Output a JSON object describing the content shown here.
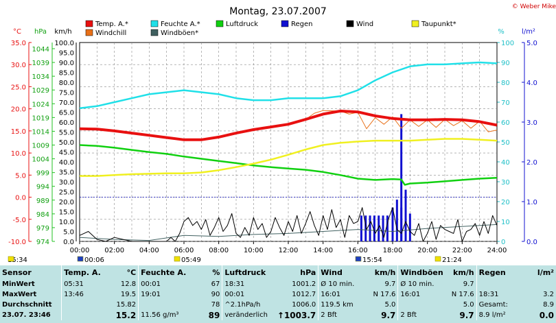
{
  "chart_data": {
    "type": "line",
    "title": "Montag, 23.07.2007",
    "copyright": "© Weber Mike",
    "legend": [
      {
        "label": "Temp. A.*",
        "color": "#e81010"
      },
      {
        "label": "Feuchte A.*",
        "color": "#20e0e8"
      },
      {
        "label": "Luftdruck",
        "color": "#10d010"
      },
      {
        "label": "Regen",
        "color": "#1010d0"
      },
      {
        "label": "Wind",
        "color": "#000000"
      },
      {
        "label": "Taupunkt*",
        "color": "#f0f020"
      },
      {
        "label": "Windchill",
        "color": "#e87018"
      },
      {
        "label": "Windböen*",
        "color": "#406060"
      }
    ],
    "axes": {
      "temp": {
        "unit": "°C",
        "ticks": [
          "35.0",
          "30.0",
          "25.0",
          "20.0",
          "15.0",
          "10.0",
          "5.0",
          "0.0",
          "-5.0",
          "-10.0"
        ],
        "color": "#e81010",
        "range": [
          -10,
          35
        ]
      },
      "pressure": {
        "unit": "hPa",
        "ticks": [
          "1044",
          "1039",
          "1034",
          "1029",
          "1024",
          "1019",
          "1014",
          "1009",
          "1004",
          "999",
          "994",
          "989",
          "984",
          "979",
          "974"
        ],
        "color": "#10a010"
      },
      "wind": {
        "unit": "km/h",
        "ticks": [
          "100.0",
          "95.0",
          "90.0",
          "85.0",
          "80.0",
          "75.0",
          "70.0",
          "65.0",
          "60.0",
          "55.0",
          "50.0",
          "45.0",
          "40.0",
          "35.0",
          "30.0",
          "25.0",
          "20.0",
          "15.0",
          "10.0",
          "5.0",
          "0.0"
        ],
        "color": "#000000",
        "range": [
          0,
          100
        ]
      },
      "humidity": {
        "unit": "%",
        "ticks": [
          "100",
          "90",
          "80",
          "70",
          "60",
          "50",
          "40",
          "30",
          "20",
          "10",
          "0"
        ],
        "color": "#20c0c8",
        "range": [
          0,
          100
        ]
      },
      "rain": {
        "unit": "l/m²",
        "ticks": [
          "5.0",
          "4.0",
          "3.0",
          "2.0",
          "1.0",
          "0.0"
        ],
        "color": "#1010d0",
        "range": [
          0,
          5
        ]
      }
    },
    "x_ticks": [
      "00:00",
      "02:00",
      "04:00",
      "06:00",
      "08:00",
      "10:00",
      "12:00",
      "14:00",
      "16:00",
      "18:00",
      "20:00",
      "22:00",
      "24:00"
    ],
    "x_range": [
      0,
      24
    ],
    "sun_markers": [
      {
        "label": "15:34"
      },
      {
        "label": "00:06"
      },
      {
        "label": "05:49"
      },
      {
        "label": "15:54"
      },
      {
        "label": "21:24"
      }
    ],
    "series": [
      {
        "name": "Temp. A.*",
        "axis": "temp",
        "x": [
          0,
          1,
          2,
          3,
          4,
          5,
          6,
          7,
          8,
          9,
          10,
          11,
          12,
          13,
          14,
          15,
          16,
          17,
          18,
          19,
          20,
          21,
          22,
          23,
          24
        ],
        "y": [
          15.5,
          15.4,
          15.0,
          14.5,
          14.0,
          13.5,
          13.0,
          13.0,
          13.6,
          14.5,
          15.3,
          15.9,
          16.5,
          17.6,
          18.8,
          19.5,
          19.3,
          18.4,
          17.8,
          17.5,
          17.5,
          17.6,
          17.5,
          17.1,
          16.3
        ]
      },
      {
        "name": "Windchill",
        "axis": "temp",
        "x": [
          0,
          1,
          2,
          3,
          4,
          5,
          6,
          7,
          8,
          9,
          10,
          11,
          12,
          13,
          13.5,
          14,
          15,
          15.5,
          16,
          16.5,
          17,
          17.5,
          18,
          18.5,
          19,
          19.5,
          20,
          20.5,
          21,
          21.5,
          22,
          22.5,
          23,
          23.5,
          24
        ],
        "y": [
          15.5,
          15.4,
          15.0,
          14.5,
          14.0,
          13.5,
          13.0,
          13.0,
          13.6,
          14.5,
          15.3,
          15.9,
          16.5,
          17.6,
          19.0,
          19.6,
          19.5,
          18.8,
          19.2,
          15.5,
          18.0,
          16.5,
          18.2,
          15.6,
          17.5,
          16.0,
          17.5,
          15.8,
          17.6,
          16.2,
          17.3,
          15.6,
          17.2,
          14.8,
          15.2
        ]
      },
      {
        "name": "Feuchte A.*",
        "axis": "humidity",
        "x": [
          0,
          1,
          2,
          3,
          4,
          5,
          6,
          7,
          8,
          9,
          10,
          11,
          12,
          13,
          14,
          15,
          16,
          17,
          18,
          19,
          20,
          21,
          22,
          23,
          24
        ],
        "y": [
          67,
          68,
          70,
          72,
          74,
          75,
          76,
          75,
          74,
          72,
          71,
          71,
          72,
          72,
          72,
          73,
          76,
          81,
          85,
          88,
          89,
          89,
          89.5,
          90,
          89.5
        ]
      },
      {
        "name": "Luftdruck",
        "axis": "temp",
        "x": [
          0,
          1,
          2,
          3,
          4,
          5,
          6,
          7,
          8,
          9,
          10,
          11,
          12,
          13,
          14,
          15,
          16,
          17,
          18,
          18.5,
          18.7,
          19,
          20,
          21,
          22,
          23,
          24
        ],
        "y": [
          11.8,
          11.6,
          11.2,
          10.7,
          10.2,
          9.8,
          9.2,
          8.7,
          8.2,
          7.7,
          7.2,
          6.8,
          6.5,
          6.2,
          5.7,
          5.0,
          4.2,
          3.9,
          4.1,
          4.0,
          2.8,
          3.1,
          3.3,
          3.6,
          3.9,
          4.2,
          4.4
        ]
      },
      {
        "name": "Taupunkt*",
        "axis": "temp",
        "x": [
          0,
          1,
          2,
          3,
          4,
          5,
          6,
          7,
          8,
          9,
          10,
          11,
          12,
          13,
          14,
          15,
          16,
          17,
          18,
          19,
          20,
          21,
          22,
          23,
          24
        ],
        "y": [
          4.8,
          4.8,
          5.0,
          5.2,
          5.3,
          5.4,
          5.4,
          5.6,
          6.1,
          6.8,
          7.6,
          8.5,
          9.6,
          10.8,
          11.8,
          12.3,
          12.6,
          12.8,
          12.8,
          12.8,
          13.0,
          13.2,
          13.2,
          13.0,
          12.8
        ]
      },
      {
        "name": "Windböen*",
        "axis": "wind",
        "x": [
          0,
          2,
          4,
          6,
          8,
          10,
          12,
          14,
          16,
          18,
          20,
          22,
          24
        ],
        "y": [
          2.0,
          1.0,
          0.5,
          3.0,
          2.5,
          3.5,
          4.0,
          5.0,
          6.0,
          5.0,
          6.5,
          7.5,
          8.5
        ]
      },
      {
        "name": "Wind",
        "axis": "wind",
        "x": [
          0,
          0.5,
          1,
          1.5,
          2,
          2.5,
          3,
          3.5,
          4,
          4.5,
          5,
          5.25,
          5.5,
          5.75,
          6,
          6.25,
          6.5,
          6.75,
          7,
          7.25,
          7.5,
          7.75,
          8,
          8.25,
          8.5,
          8.75,
          9,
          9.25,
          9.5,
          9.75,
          10,
          10.25,
          10.5,
          10.75,
          11,
          11.25,
          11.5,
          11.75,
          12,
          12.25,
          12.5,
          12.75,
          13,
          13.25,
          13.5,
          13.75,
          14,
          14.25,
          14.5,
          14.75,
          15,
          15.25,
          15.5,
          15.75,
          16,
          16.25,
          16.5,
          16.75,
          17,
          17.25,
          17.5,
          17.75,
          18,
          18.25,
          18.5,
          18.75,
          19,
          19.25,
          19.5,
          19.75,
          20,
          20.25,
          20.5,
          20.75,
          21,
          21.25,
          21.5,
          21.75,
          22,
          22.25,
          22.5,
          22.75,
          23,
          23.25,
          23.5,
          23.75,
          24
        ],
        "y": [
          3,
          5,
          1,
          0,
          2,
          1,
          0,
          0,
          0,
          0,
          0,
          2,
          0,
          4,
          10,
          12,
          8,
          10,
          6,
          11,
          3,
          7,
          12,
          5,
          8,
          14,
          4,
          2,
          7,
          3,
          12,
          6,
          9,
          2,
          5,
          12,
          7,
          3,
          10,
          5,
          13,
          4,
          9,
          15,
          8,
          3,
          13,
          6,
          16,
          7,
          11,
          2,
          13,
          9,
          10,
          17,
          6,
          10,
          4,
          8,
          2,
          11,
          17,
          6,
          4,
          10,
          5,
          3,
          9,
          0,
          4,
          10,
          1,
          8,
          6,
          5,
          4,
          11,
          0,
          5,
          6,
          9,
          3,
          10,
          4,
          13,
          8
        ]
      }
    ],
    "rain_bars": [
      {
        "x": 16.2,
        "y": 0.65
      },
      {
        "x": 16.45,
        "y": 0.65
      },
      {
        "x": 16.7,
        "y": 0.65
      },
      {
        "x": 16.95,
        "y": 0.65
      },
      {
        "x": 17.2,
        "y": 0.65
      },
      {
        "x": 17.45,
        "y": 0.65
      },
      {
        "x": 17.7,
        "y": 0.65
      },
      {
        "x": 18.0,
        "y": 0.85
      },
      {
        "x": 18.25,
        "y": 1.05
      },
      {
        "x": 18.5,
        "y": 0.85
      },
      {
        "x": 18.75,
        "y": 1.3
      },
      {
        "x": 19.0,
        "y": 0.7
      },
      {
        "x": 18.5,
        "y": 3.2
      }
    ],
    "grid": true
  },
  "stats": {
    "headers": [
      "Sensor",
      "Temp. A.",
      "°C",
      "Feuchte A.",
      "%",
      "Luftdruck",
      "hPa",
      "Wind",
      "km/h",
      "Windböen",
      "km/h",
      "Regen",
      "l/m²"
    ],
    "rows": [
      {
        "label": "MinWert",
        "cells": [
          "05:31",
          "12.8",
          "00:01",
          "67",
          "18:31",
          "1001.2",
          "Ø 10 min.",
          "9.7",
          "Ø 10 min.",
          "9.7",
          "",
          ""
        ]
      },
      {
        "label": "MaxWert",
        "cells": [
          "13:46",
          "19.5",
          "19:01",
          "90",
          "00:01",
          "1012.7",
          "16:01",
          "N 17.6",
          "16:01",
          "N 17.6",
          "18:31",
          "3.2"
        ]
      },
      {
        "label": "Durchschnitt",
        "cells": [
          "",
          "15.82",
          "",
          "78",
          "^2.1hPa/h",
          "1006.0",
          "119.5 km",
          "5.0",
          "",
          "5.0",
          "Gesamt:",
          "8.9"
        ]
      },
      {
        "label": "23.07. 23:46",
        "cells": [
          "",
          "15.2",
          "11.56 g/m³",
          "89",
          "veränderlich",
          "↑1003.7",
          "2 Bft",
          "9.7",
          "2 Bft",
          "9.7",
          "8.9 l/m²",
          "0.0"
        ]
      }
    ]
  }
}
